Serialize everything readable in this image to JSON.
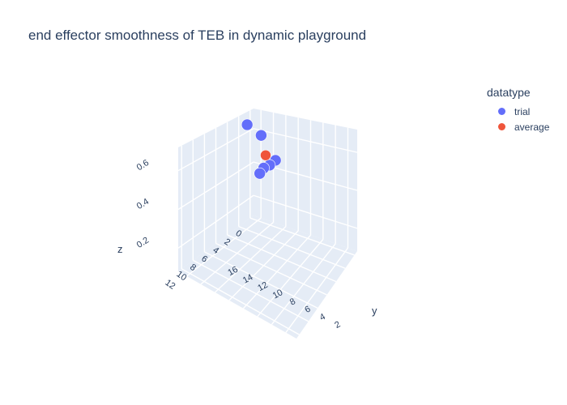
{
  "chart_data": {
    "type": "scatter",
    "title": "end effector smoothness of TEB in dynamic playground",
    "xlabel": "",
    "ylabel": "y",
    "zlabel": "z",
    "x_ticks": [
      "0",
      "2",
      "4",
      "6",
      "8",
      "10",
      "12"
    ],
    "y_ticks": [
      "2",
      "4",
      "6",
      "8",
      "10",
      "12",
      "14",
      "16"
    ],
    "z_ticks": [
      "0.2",
      "0.4",
      "0.6"
    ],
    "legend_title": "datatype",
    "legend_position": "top-right",
    "series": [
      {
        "name": "trial",
        "color": "#636efa",
        "points": [
          {
            "x": 5.0,
            "y": 9.0,
            "z": 0.62
          },
          {
            "x": 5.5,
            "y": 9.5,
            "z": 0.6
          },
          {
            "x": 6.0,
            "y": 10.0,
            "z": 0.59
          },
          {
            "x": 6.5,
            "y": 10.2,
            "z": 0.57
          },
          {
            "x": 4.0,
            "y": 12.0,
            "z": 0.7
          },
          {
            "x": 3.0,
            "y": 15.0,
            "z": 0.71
          }
        ]
      },
      {
        "name": "average",
        "color": "#ef553b",
        "points": [
          {
            "x": 5.0,
            "y": 10.5,
            "z": 0.63
          }
        ]
      }
    ]
  }
}
